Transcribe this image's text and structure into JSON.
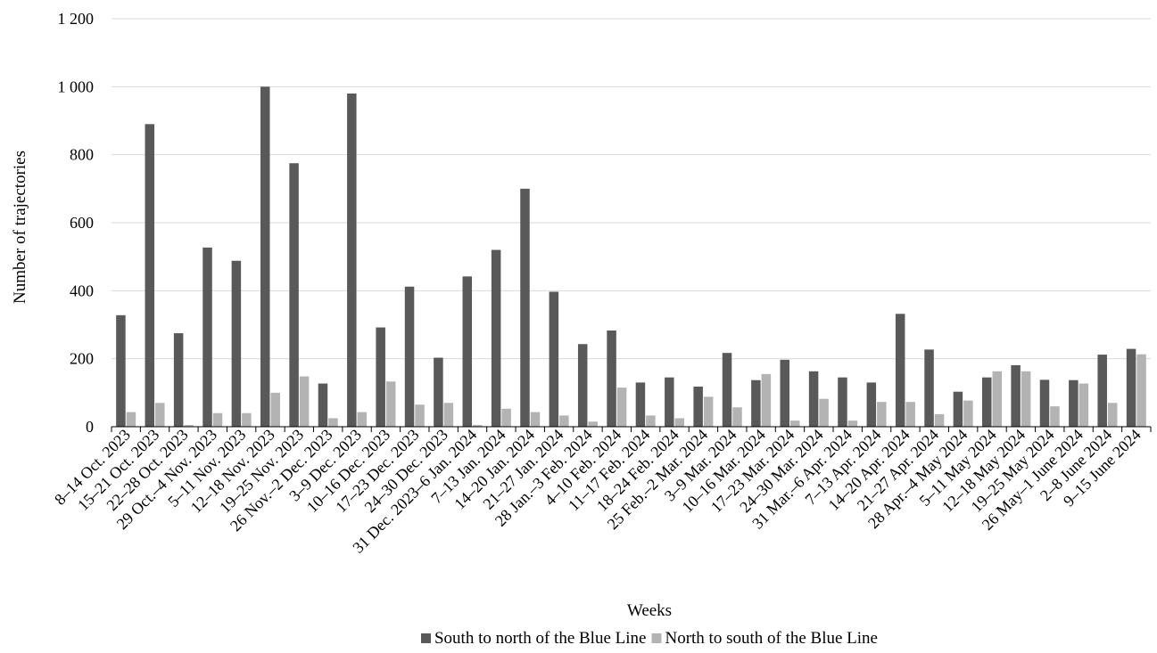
{
  "chart_data": {
    "type": "bar",
    "title": "",
    "xlabel": "Weeks",
    "ylabel": "Number of trajectories",
    "ylim": [
      0,
      1200
    ],
    "yticks": [
      0,
      200,
      400,
      600,
      800,
      1000,
      1200
    ],
    "ytick_labels": [
      "0",
      "200",
      "400",
      "600",
      "800",
      "1 000",
      "1 200"
    ],
    "grid": "horizontal",
    "legend_position": "bottom-center",
    "categories": [
      "8–14 Oct. 2023",
      "15–21 Oct. 2023",
      "22–28 Oct. 2023",
      "29 Oct.–4 Nov. 2023",
      "5–11 Nov. 2023",
      "12–18 Nov. 2023",
      "19–25 Nov. 2023",
      "26 Nov.–2 Dec. 2023",
      "3–9 Dec. 2023",
      "10–16 Dec. 2023",
      "17–23 Dec. 2023",
      "24–30 Dec. 2023",
      "31 Dec. 2023–6 Jan. 2024",
      "7–13 Jan. 2024",
      "14–20 Jan. 2024",
      "21–27 Jan. 2024",
      "28 Jan.–3 Feb. 2024",
      "4–10 Feb. 2024",
      "11–17 Feb. 2024",
      "18–24 Feb. 2024",
      "25 Feb.–2 Mar. 2024",
      "3–9 Mar. 2024",
      "10–16 Mar. 2024",
      "17–23 Mar. 2024",
      "24–30 Mar. 2024",
      "31 Mar.–6 Apr. 2024",
      "7–13 Apr. 2024",
      "14–20 Apr. 2024",
      "21–27 Apr. 2024",
      "28 Apr.–4 May 2024",
      "5–11 May 2024",
      "12–18 May 2024",
      "19–25 May 2024",
      "26 May–1 June 2024",
      "2–8 June 2024",
      "9–15 June 2024"
    ],
    "series": [
      {
        "name": "South to north of the Blue Line",
        "color": "#595959",
        "values": [
          328,
          890,
          275,
          527,
          488,
          1000,
          775,
          127,
          980,
          292,
          412,
          203,
          442,
          520,
          700,
          397,
          243,
          283,
          130,
          145,
          118,
          217,
          137,
          197,
          163,
          145,
          130,
          332,
          227,
          103,
          145,
          181,
          138,
          137,
          212,
          229
        ]
      },
      {
        "name": "North to south of the Blue Line",
        "color": "#b3b3b3",
        "values": [
          43,
          70,
          5,
          40,
          40,
          100,
          148,
          25,
          43,
          133,
          65,
          70,
          5,
          53,
          43,
          33,
          15,
          115,
          33,
          25,
          88,
          57,
          155,
          18,
          82,
          18,
          73,
          73,
          37,
          77,
          163,
          163,
          60,
          127,
          70,
          213
        ]
      }
    ]
  }
}
